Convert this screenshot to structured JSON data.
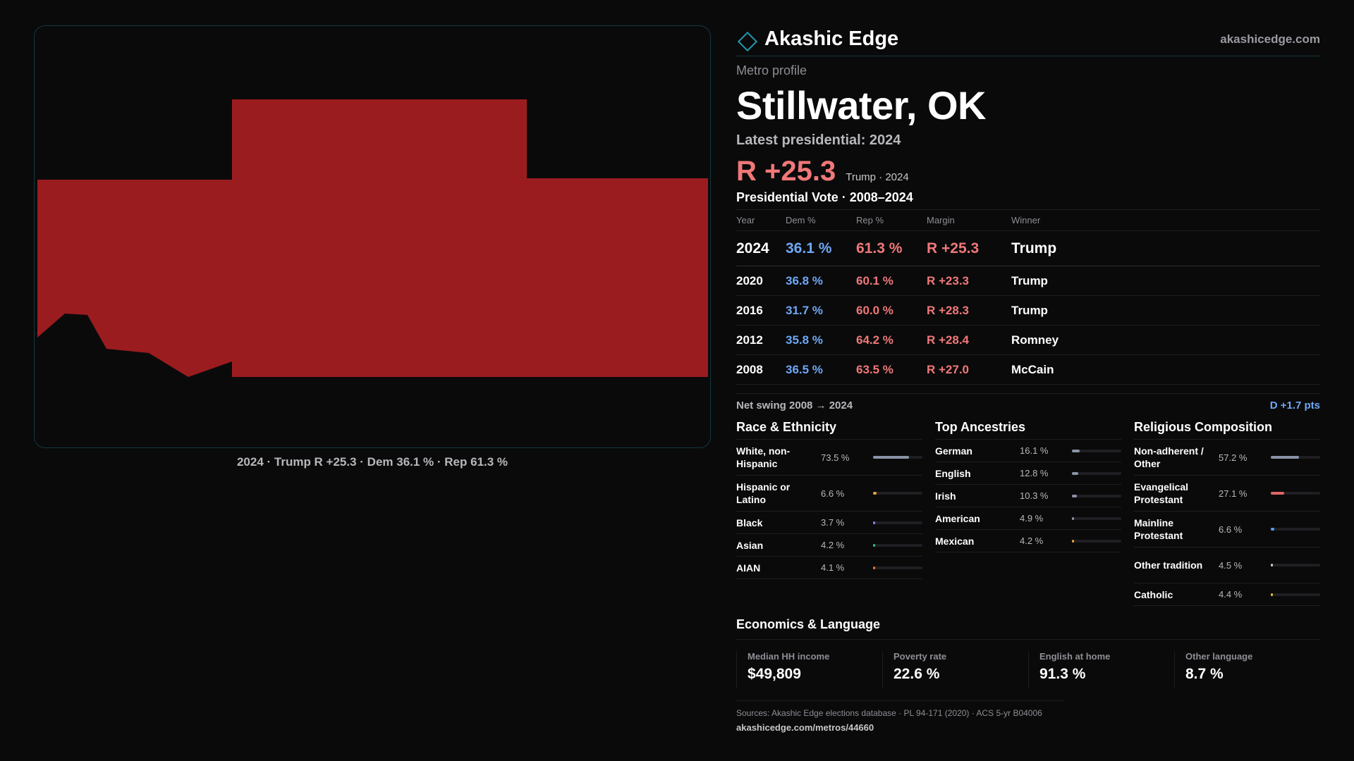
{
  "map": {
    "caption": "2024 · Trump R +25.3 · Dem 36.1 % · Rep 61.3 %",
    "fill_color": "#9b1c1f"
  },
  "brand": {
    "name": "Akashic Edge",
    "url": "akashicedge.com",
    "icon": "diamond-icon"
  },
  "profile": {
    "kicker": "Metro profile",
    "city": "Stillwater, OK",
    "latest": "Latest presidential: 2024",
    "margin": "R +25.3",
    "margin_sub": "Trump · 2024"
  },
  "votes": {
    "title": "Presidential Vote · 2008–2024",
    "headers": {
      "year": "Year",
      "dem": "Dem %",
      "rep": "Rep %",
      "margin": "Margin",
      "winner": "Winner"
    },
    "rows": [
      {
        "year": "2024",
        "dem": "36.1 %",
        "rep": "61.3 %",
        "margin": "R +25.3",
        "winner": "Trump"
      },
      {
        "year": "2020",
        "dem": "36.8 %",
        "rep": "60.1 %",
        "margin": "R +23.3",
        "winner": "Trump"
      },
      {
        "year": "2016",
        "dem": "31.7 %",
        "rep": "60.0 %",
        "margin": "R +28.3",
        "winner": "Trump"
      },
      {
        "year": "2012",
        "dem": "35.8 %",
        "rep": "64.2 %",
        "margin": "R +28.4",
        "winner": "Romney"
      },
      {
        "year": "2008",
        "dem": "36.5 %",
        "rep": "63.5 %",
        "margin": "R +27.0",
        "winner": "McCain"
      }
    ]
  },
  "swing": {
    "label": "Net swing 2008 → 2024",
    "value": "D +1.7 pts"
  },
  "race": {
    "title": "Race & Ethnicity",
    "items": [
      {
        "label": "White, non-Hispanic",
        "value": "73.5 %",
        "pct": 73.5,
        "color": "#8a93a6"
      },
      {
        "label": "Hispanic or Latino",
        "value": "6.6 %",
        "pct": 6.6,
        "color": "#e6a23c"
      },
      {
        "label": "Black",
        "value": "3.7 %",
        "pct": 3.7,
        "color": "#8b7ff0"
      },
      {
        "label": "Asian",
        "value": "4.2 %",
        "pct": 4.2,
        "color": "#3fb68b"
      },
      {
        "label": "AIAN",
        "value": "4.1 %",
        "pct": 4.1,
        "color": "#e07a3c"
      }
    ]
  },
  "ancestry": {
    "title": "Top Ancestries",
    "items": [
      {
        "label": "German",
        "value": "16.1 %",
        "pct": 16.1,
        "color": "#8a93a6"
      },
      {
        "label": "English",
        "value": "12.8 %",
        "pct": 12.8,
        "color": "#8a93a6"
      },
      {
        "label": "Irish",
        "value": "10.3 %",
        "pct": 10.3,
        "color": "#8a93a6"
      },
      {
        "label": "American",
        "value": "4.9 %",
        "pct": 4.9,
        "color": "#8a93a6"
      },
      {
        "label": "Mexican",
        "value": "4.2 %",
        "pct": 4.2,
        "color": "#e6a23c"
      }
    ]
  },
  "religion": {
    "title": "Religious Composition",
    "items": [
      {
        "label": "Non-adherent / Other",
        "value": "57.2 %",
        "pct": 57.2,
        "color": "#8a93a6"
      },
      {
        "label": "Evangelical Protestant",
        "value": "27.1 %",
        "pct": 27.1,
        "color": "#e06666"
      },
      {
        "label": "Mainline Protestant",
        "value": "6.6 %",
        "pct": 6.6,
        "color": "#5b9bf0"
      },
      {
        "label": "Other tradition",
        "value": "4.5 %",
        "pct": 4.5,
        "color": "#c8c8cc"
      },
      {
        "label": "Catholic",
        "value": "4.4 %",
        "pct": 4.4,
        "color": "#e6b83c"
      }
    ]
  },
  "econ": {
    "title": "Economics & Language",
    "items": [
      {
        "label": "Median HH income",
        "value": "$49,809"
      },
      {
        "label": "Poverty rate",
        "value": "22.6 %"
      },
      {
        "label": "English at home",
        "value": "91.3 %"
      },
      {
        "label": "Other language",
        "value": "8.7 %"
      }
    ]
  },
  "sources": {
    "text": "Sources: Akashic Edge elections database · PL 94-171 (2020) · ACS 5-yr B04006",
    "url": "akashicedge.com/metros/44660"
  }
}
